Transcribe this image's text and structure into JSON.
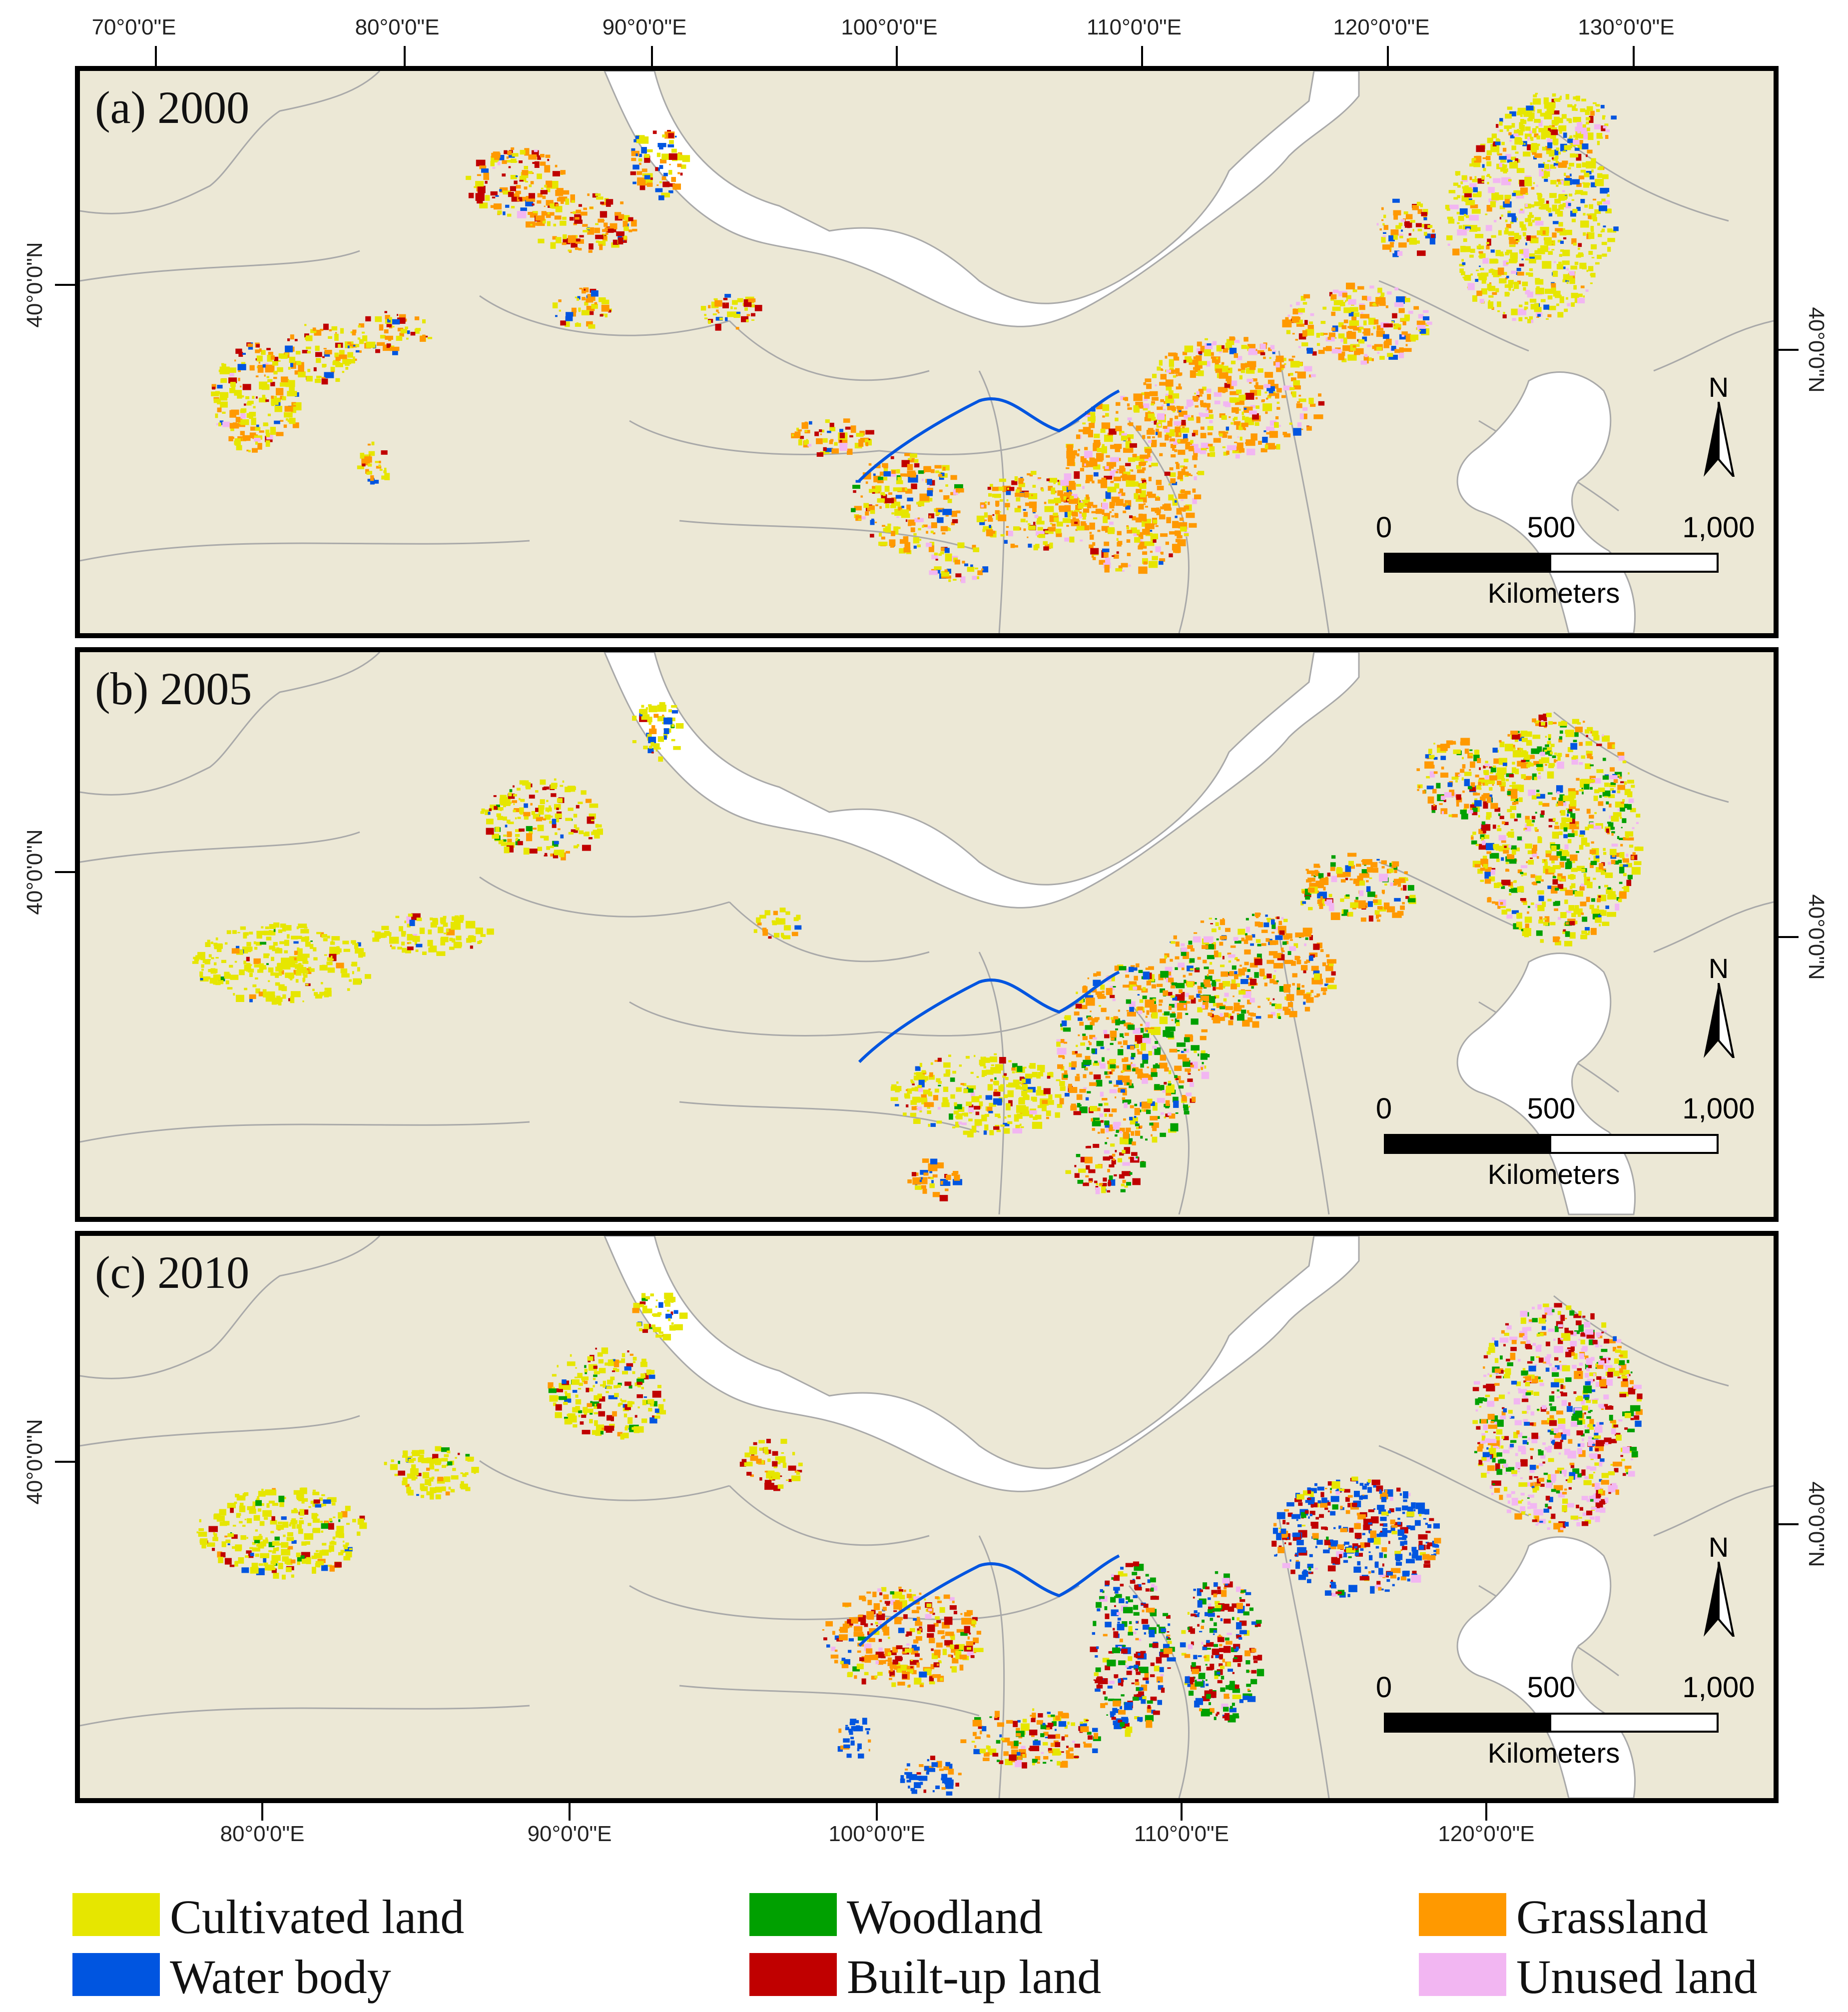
{
  "top_axis_labels": [
    "70°0'0\"E",
    "80°0'0\"E",
    "90°0'0\"E",
    "100°0'0\"E",
    "110°0'0\"E",
    "120°0'0\"E",
    "130°0'0\"E"
  ],
  "bottom_axis_labels": [
    "80°0'0\"E",
    "90°0'0\"E",
    "100°0'0\"E",
    "110°0'0\"E",
    "120°0'0\"E"
  ],
  "lat_label": "40°0'0\"N",
  "panels": [
    {
      "label": "(a) 2000",
      "year": 2000
    },
    {
      "label": "(b) 2005",
      "year": 2005
    },
    {
      "label": "(c) 2010",
      "year": 2010
    }
  ],
  "north_arrow": {
    "letter": "N"
  },
  "scale_bar": {
    "labels": [
      "0",
      "500",
      "1,000"
    ],
    "unit": "Kilometers"
  },
  "legend": [
    {
      "label": "Cultivated land",
      "color": "#E6E600"
    },
    {
      "label": "Woodland",
      "color": "#00A000"
    },
    {
      "label": "Grassland",
      "color": "#FF9900"
    },
    {
      "label": "Water body",
      "color": "#0055E0"
    },
    {
      "label": "Built-up land",
      "color": "#C00000"
    },
    {
      "label": "Unused land",
      "color": "#F2B6F2"
    }
  ],
  "map_colors": {
    "land": "#ECE8D6",
    "boundary": "#A9A9A9",
    "sea": "#FFFFFF"
  }
}
